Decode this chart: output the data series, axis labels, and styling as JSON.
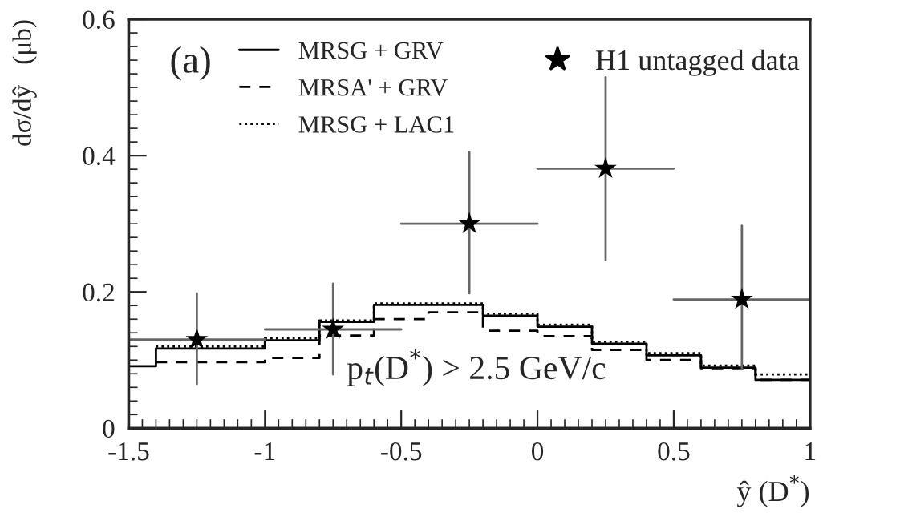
{
  "chart_data": {
    "type": "step",
    "xlabel": "ŷ (D$^{*}$)",
    "ylabel": "dσ/dŷ   (μb)",
    "xlim": [
      -1.5,
      1
    ],
    "xticks": [
      -1.5,
      -1,
      -0.5,
      0,
      0.5,
      1
    ],
    "ylim": [
      0,
      0.6
    ],
    "yticks": [
      0,
      0.2,
      0.4,
      0.6
    ],
    "legend": "top",
    "grid": false,
    "annotations": [
      "(a)",
      "p$_{t}$(D$^{*}$) > 2.5 GeV/c"
    ],
    "series": [
      {
        "name": "MRSG + GRV",
        "line_style": "solid",
        "color": "#000000",
        "x": [
          -1.5,
          -1.4,
          -1.2,
          -1.0,
          -0.8,
          -0.6,
          -0.4,
          -0.2,
          0,
          0.2,
          0.4,
          0.6,
          0.8,
          1.0
        ],
        "values": [
          0.091,
          0.117,
          0.117,
          0.129,
          0.156,
          0.181,
          0.181,
          0.165,
          0.149,
          0.124,
          0.107,
          0.089,
          0.071,
          0.071
        ]
      },
      {
        "name": "MRSA' + GRV",
        "line_style": "dashed",
        "color": "#000000",
        "x": [
          -1.4,
          -1.2,
          -1.0,
          -0.8,
          -0.6,
          -0.4,
          -0.2,
          0,
          0.2,
          0.4,
          0.6,
          0.8,
          1.0
        ],
        "values": [
          0.097,
          0.097,
          0.103,
          0.136,
          0.16,
          0.17,
          0.143,
          0.135,
          0.115,
          0.1,
          0.088,
          0.071,
          0.071
        ]
      },
      {
        "name": "MRSG + LAC1",
        "line_style": "dotted",
        "color": "#000000",
        "x": [
          -1.4,
          -1.2,
          -1.0,
          -0.8,
          -0.6,
          -0.4,
          -0.2,
          0,
          0.2,
          0.4,
          0.6,
          0.8,
          1.0
        ],
        "values": [
          0.12,
          0.12,
          0.132,
          0.158,
          0.183,
          0.183,
          0.168,
          0.152,
          0.127,
          0.11,
          0.092,
          0.079,
          0.079
        ]
      },
      {
        "name": "H1 untagged data",
        "type": "scatter",
        "marker": "star",
        "color": "#000000",
        "x": [
          -1.25,
          -0.75,
          -0.25,
          0.25,
          0.75
        ],
        "values": [
          0.13,
          0.145,
          0.3,
          0.381,
          0.189
        ],
        "errors": [
          [
            0.065,
            0.198
          ],
          [
            0.079,
            0.212
          ],
          [
            0.198,
            0.405
          ],
          [
            0.247,
            0.515
          ],
          [
            0.087,
            0.297
          ]
        ],
        "xerrors": [
          0.25,
          0.25,
          0.25,
          0.25,
          0.25
        ]
      }
    ]
  }
}
